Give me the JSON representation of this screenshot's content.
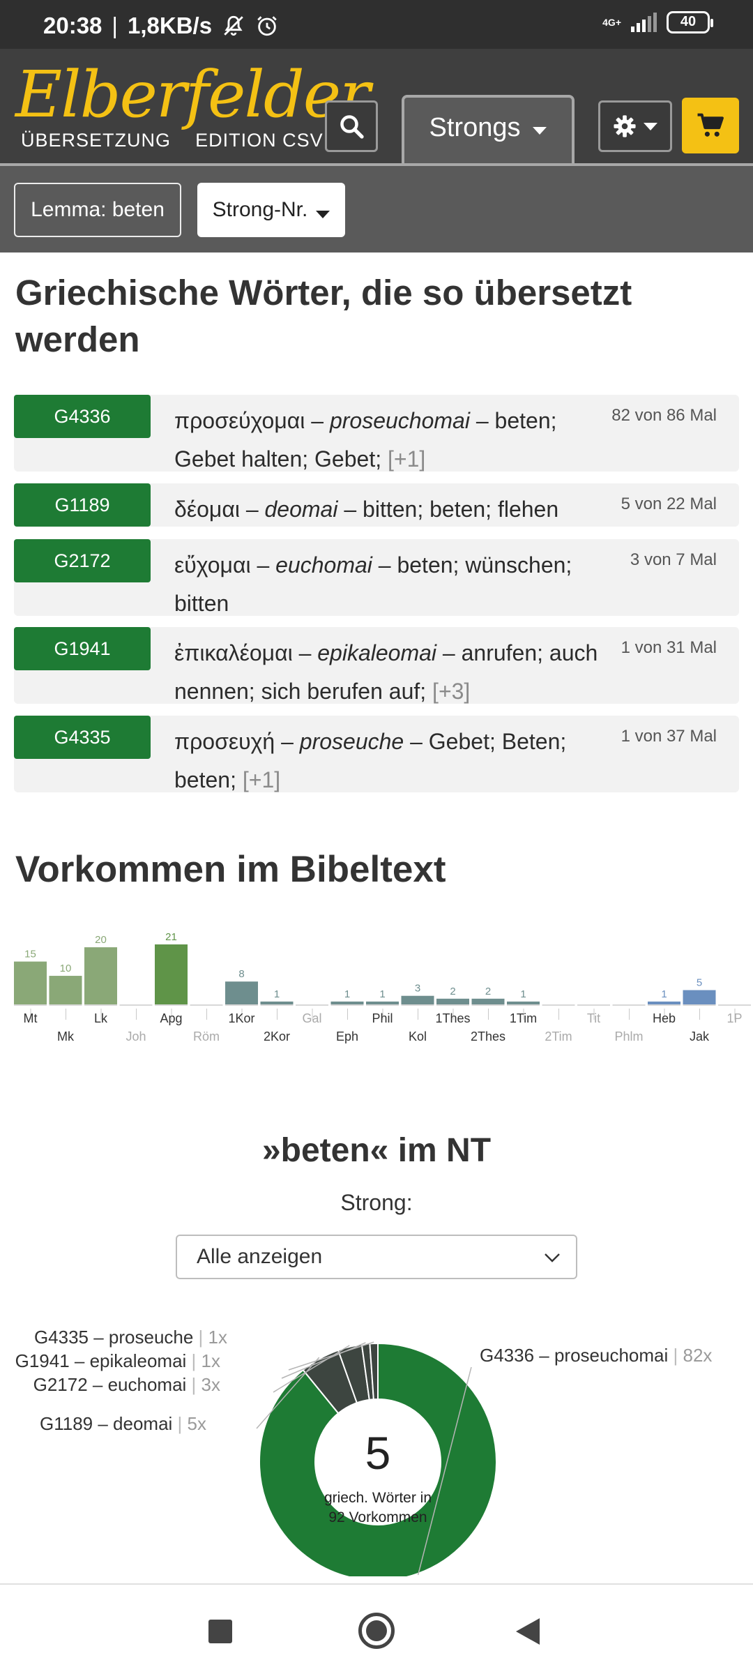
{
  "statusbar": {
    "time": "20:38",
    "separator": "|",
    "speed": "1,8KB/s",
    "network": "4G+",
    "battery": "40"
  },
  "header": {
    "logo_script": "Elberfelder",
    "logo_left": "ÜBERSETZUNG",
    "logo_right": "EDITION CSV",
    "search_icon": "search-icon",
    "active_tab": "Strongs",
    "settings_icon": "gear-icon",
    "cart_icon": "cart-icon",
    "accent": "#f4c114",
    "lemma_chip": "Lemma: beten",
    "strongnr_button": "Strong-Nr."
  },
  "words_section": {
    "title": "Griechische Wörter, die so übersetzt werden",
    "accent": "#1e7b34",
    "words": [
      {
        "strong": "G4336",
        "greek": "προσεύχομαι",
        "translit": "proseuchomai",
        "meanings": "beten; Gebet halten; Gebet;",
        "more": "[+1]",
        "count": "82 von 86 Mal"
      },
      {
        "strong": "G1189",
        "greek": "δέομαι",
        "translit": "deomai",
        "meanings": "bitten; beten; flehen",
        "more": "",
        "count": "5 von 22 Mal"
      },
      {
        "strong": "G2172",
        "greek": "εὔχομαι",
        "translit": "euchomai",
        "meanings": "beten; wünschen; bitten",
        "more": "",
        "count": "3 von 7 Mal"
      },
      {
        "strong": "G1941",
        "greek": "ἐπικαλέομαι",
        "translit": "epikaleomai",
        "meanings": "anrufen; auch nennen; sich berufen auf;",
        "more": "[+3]",
        "count": "1 von 31 Mal"
      },
      {
        "strong": "G4335",
        "greek": "προσευχή",
        "translit": "proseuche",
        "meanings": "Gebet; Beten; beten;",
        "more": "[+1]",
        "count": "1 von 37 Mal"
      }
    ]
  },
  "vorkommen": {
    "title": "Vorkommen im Bibeltext"
  },
  "chart_data": [
    {
      "type": "bar",
      "categories": [
        "Mt",
        "Mk",
        "Lk",
        "Joh",
        "Apg",
        "Röm",
        "1Kor",
        "2Kor",
        "Gal",
        "Eph",
        "Phil",
        "Kol",
        "1Thes",
        "2Thes",
        "1Tim",
        "2Tim",
        "Tit",
        "Phlm",
        "Heb",
        "Jak",
        "1P"
      ],
      "values": [
        15,
        10,
        20,
        0,
        21,
        0,
        8,
        1,
        0,
        1,
        1,
        3,
        2,
        2,
        1,
        0,
        0,
        0,
        1,
        5,
        0
      ],
      "group_colors": {
        "gospels": "#8aa877",
        "acts": "#5f9448",
        "paul": "#6e8e8e",
        "general": "#6a8fbf"
      },
      "groups": [
        "gospels",
        "gospels",
        "gospels",
        "gospels",
        "acts",
        "paul",
        "paul",
        "paul",
        "paul",
        "paul",
        "paul",
        "paul",
        "paul",
        "paul",
        "paul",
        "paul",
        "paul",
        "paul",
        "general",
        "general",
        "general"
      ],
      "grid": false
    },
    {
      "type": "pie",
      "title": "»beten« im NT",
      "filter_label": "Strong:",
      "filter_value": "Alle anzeigen",
      "center_value": "5",
      "center_text_1": "griech. Wörter in",
      "center_text_2": "92 Vorkommen",
      "slices": [
        {
          "label": "G4336 – proseuchomai",
          "count": "82x",
          "value": 82,
          "color": "#1e7b34"
        },
        {
          "label": "G1189 – deomai",
          "count": "5x",
          "value": 5,
          "color": "#3d4540"
        },
        {
          "label": "G2172 – euchomai",
          "count": "3x",
          "value": 3,
          "color": "#3d4540"
        },
        {
          "label": "G1941 – epikaleomai",
          "count": "1x",
          "value": 1,
          "color": "#3d4540"
        },
        {
          "label": "G4335 – proseuche",
          "count": "1x",
          "value": 1,
          "color": "#3d4540"
        }
      ]
    }
  ]
}
